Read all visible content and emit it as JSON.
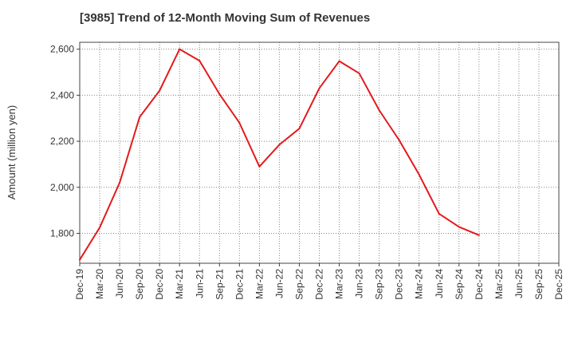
{
  "chart_data": {
    "type": "line",
    "title": "[3985]  Trend of 12-Month Moving Sum of Revenues",
    "xlabel": "",
    "ylabel": "Amount (million yen)",
    "x_ticks": [
      "Dec-19",
      "Mar-20",
      "Jun-20",
      "Sep-20",
      "Dec-20",
      "Mar-21",
      "Jun-21",
      "Sep-21",
      "Dec-21",
      "Mar-22",
      "Jun-22",
      "Sep-22",
      "Dec-22",
      "Mar-23",
      "Jun-23",
      "Sep-23",
      "Dec-23",
      "Mar-24",
      "Jun-24",
      "Sep-24",
      "Dec-24",
      "Mar-25",
      "Jun-25",
      "Sep-25",
      "Dec-25"
    ],
    "y_ticks": [
      1800,
      2000,
      2200,
      2400,
      2600
    ],
    "ylim": [
      1670,
      2630
    ],
    "grid": true,
    "series": [
      {
        "color": "#e31a1c",
        "x": [
          "Dec-19",
          "Mar-20",
          "Jun-20",
          "Sep-20",
          "Dec-20",
          "Mar-21",
          "Jun-21",
          "Sep-21",
          "Dec-21",
          "Mar-22",
          "Jun-22",
          "Sep-22",
          "Dec-22",
          "Mar-23",
          "Jun-23",
          "Sep-23",
          "Dec-23",
          "Mar-24",
          "Jun-24",
          "Sep-24",
          "Dec-24"
        ],
        "values": [
          1685,
          1825,
          2020,
          2305,
          2420,
          2600,
          2550,
          2405,
          2280,
          2090,
          2185,
          2255,
          2430,
          2548,
          2495,
          2335,
          2205,
          2055,
          1885,
          1828,
          1792
        ]
      }
    ]
  }
}
